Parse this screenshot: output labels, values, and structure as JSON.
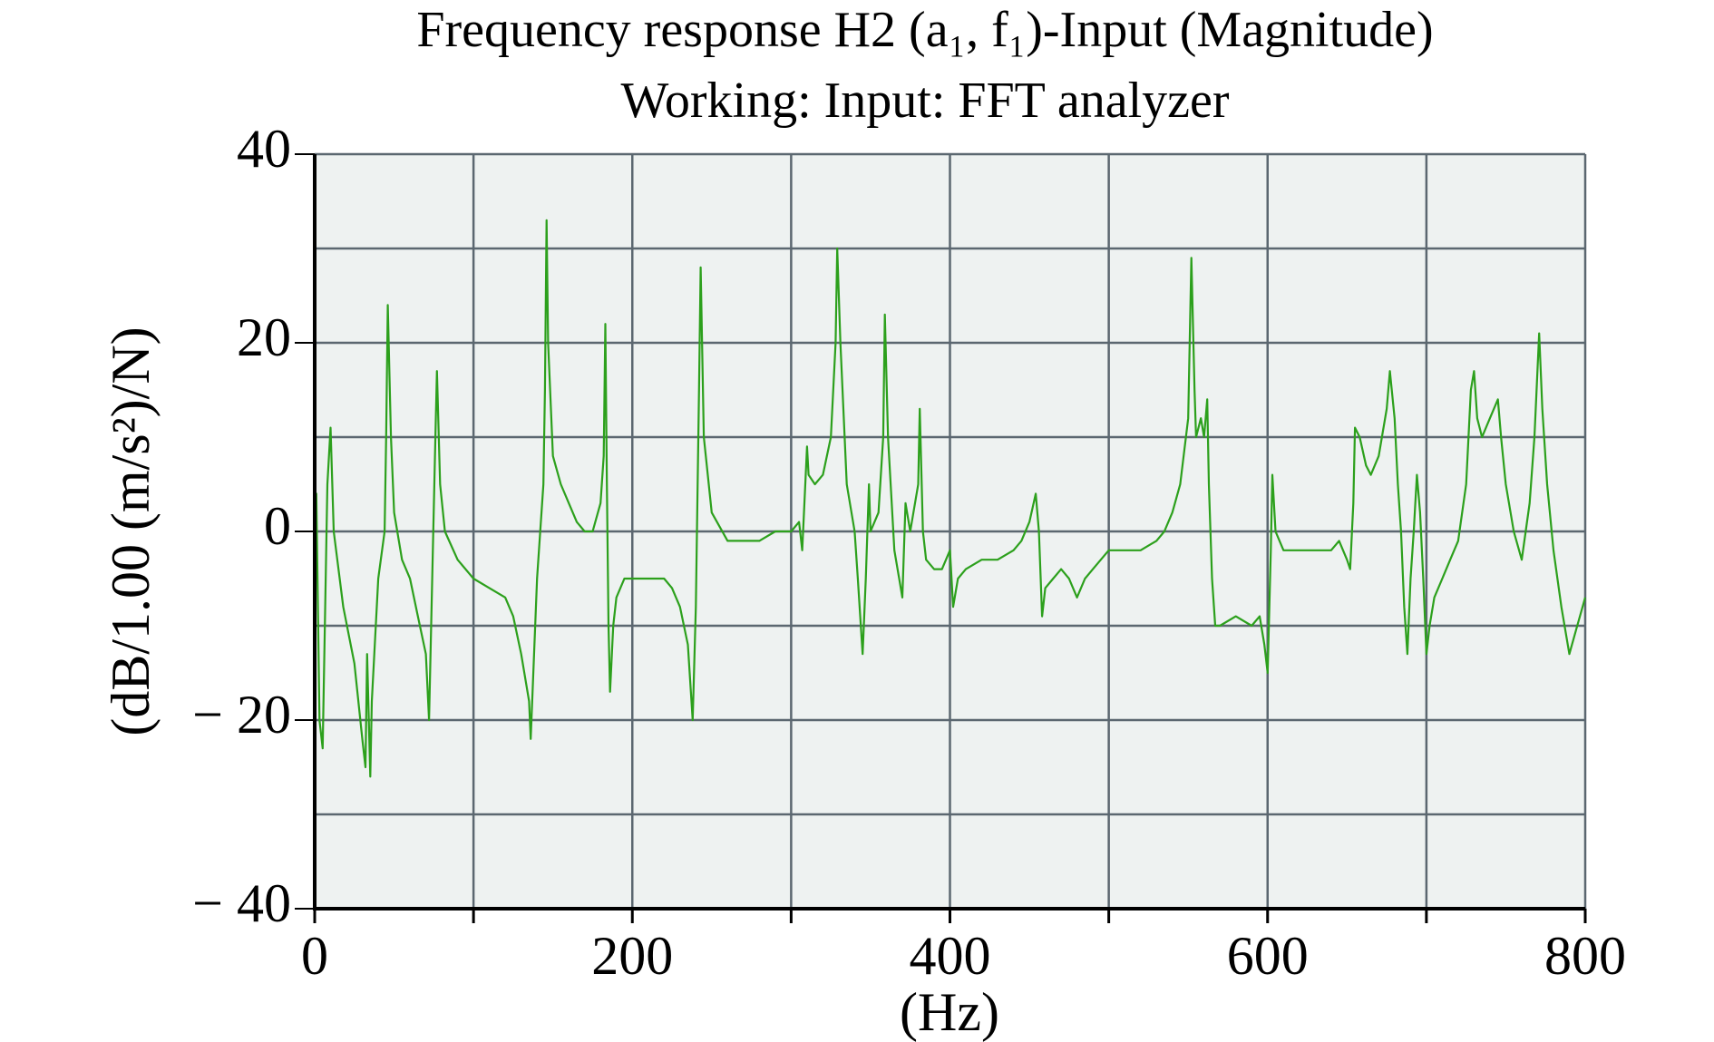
{
  "chart_data": {
    "type": "line",
    "title": "Frequency response H2 (a₁, f₁)-Input (Magnitude)",
    "subtitle": "Working: Input: FFT analyzer",
    "x_label": "(Hz)",
    "y_label": "(dB/1.00 (m/s²)/N)",
    "xlim": [
      0,
      800
    ],
    "xticks": [
      0,
      200,
      400,
      600,
      800
    ],
    "minor_xticks": [
      100,
      300,
      500,
      700
    ],
    "ylim": [
      -40,
      40
    ],
    "yticks": [
      {
        "value": -40,
        "label": "− 40"
      },
      {
        "value": -20,
        "label": "− 20"
      },
      0,
      20,
      40
    ],
    "minor_yticks": [
      -30,
      -10,
      10,
      30
    ],
    "grid": true,
    "x": [
      0,
      1,
      3,
      5,
      8,
      10,
      12,
      18,
      25,
      30,
      32,
      33,
      35,
      36,
      40,
      44,
      45,
      46,
      48,
      50,
      55,
      60,
      65,
      70,
      72,
      74,
      76,
      77,
      79,
      82,
      90,
      100,
      110,
      120,
      125,
      130,
      135,
      136,
      140,
      144,
      145,
      146,
      147,
      150,
      155,
      160,
      165,
      170,
      175,
      180,
      182,
      183,
      184,
      185,
      186,
      188,
      190,
      195,
      200,
      210,
      220,
      225,
      230,
      235,
      238,
      240,
      242,
      243,
      245,
      250,
      260,
      270,
      280,
      290,
      300,
      305,
      307,
      310,
      311,
      315,
      320,
      325,
      328,
      329,
      331,
      335,
      340,
      342,
      345,
      347,
      349,
      350,
      355,
      358,
      359,
      361,
      365,
      368,
      370,
      372,
      375,
      380,
      381,
      383,
      385,
      390,
      395,
      400,
      402,
      405,
      410,
      420,
      430,
      440,
      445,
      450,
      454,
      456,
      458,
      460,
      465,
      470,
      475,
      480,
      485,
      490,
      500,
      510,
      520,
      530,
      535,
      540,
      545,
      550,
      552,
      554,
      555,
      558,
      560,
      562,
      563,
      565,
      567,
      570,
      580,
      590,
      595,
      598,
      600,
      602,
      603,
      605,
      610,
      620,
      630,
      640,
      645,
      650,
      652,
      654,
      655,
      658,
      662,
      665,
      670,
      675,
      677,
      680,
      682,
      684,
      686,
      688,
      690,
      692,
      694,
      696,
      698,
      700,
      702,
      705,
      710,
      715,
      720,
      725,
      728,
      730,
      732,
      735,
      740,
      745,
      747,
      750,
      755,
      760,
      765,
      768,
      771,
      773,
      776,
      780,
      785,
      790,
      795,
      800
    ],
    "series": [
      {
        "name": "H2",
        "color": "#2ca01c",
        "values": [
          -5,
          4,
          -20,
          -23,
          5,
          11,
          0,
          -8,
          -14,
          -22,
          -25,
          -13,
          -26,
          -18,
          -5,
          0,
          10,
          24,
          10,
          2,
          -3,
          -5,
          -9,
          -13,
          -20,
          -5,
          10,
          17,
          5,
          0,
          -3,
          -5,
          -6,
          -7,
          -9,
          -13,
          -18,
          -22,
          -5,
          5,
          15,
          33,
          20,
          8,
          5,
          3,
          1,
          0,
          0,
          3,
          8,
          22,
          5,
          -10,
          -17,
          -10,
          -7,
          -5,
          -5,
          -5,
          -5,
          -6,
          -8,
          -12,
          -20,
          -8,
          15,
          28,
          10,
          2,
          -1,
          -1,
          -1,
          0,
          0,
          1,
          -2,
          9,
          6,
          5,
          6,
          10,
          20,
          30,
          20,
          5,
          0,
          -5,
          -13,
          -5,
          5,
          0,
          2,
          10,
          23,
          10,
          -2,
          -5,
          -7,
          3,
          0,
          5,
          13,
          0,
          -3,
          -4,
          -4,
          -2,
          -8,
          -5,
          -4,
          -3,
          -3,
          -2,
          -1,
          1,
          4,
          0,
          -9,
          -6,
          -5,
          -4,
          -5,
          -7,
          -5,
          -4,
          -2,
          -2,
          -2,
          -1,
          0,
          2,
          5,
          12,
          29,
          15,
          10,
          12,
          10,
          14,
          5,
          -5,
          -10,
          -10,
          -9,
          -10,
          -9,
          -12,
          -15,
          -2,
          6,
          0,
          -2,
          -2,
          -2,
          -2,
          -1,
          -3,
          -4,
          3,
          11,
          10,
          7,
          6,
          8,
          13,
          17,
          12,
          5,
          0,
          -8,
          -13,
          -5,
          0,
          6,
          2,
          -5,
          -13,
          -10,
          -7,
          -5,
          -3,
          -1,
          5,
          15,
          17,
          12,
          10,
          12,
          14,
          10,
          5,
          0,
          -3,
          3,
          10,
          21,
          13,
          5,
          -2,
          -8,
          -13,
          -10,
          -7
        ]
      }
    ]
  }
}
